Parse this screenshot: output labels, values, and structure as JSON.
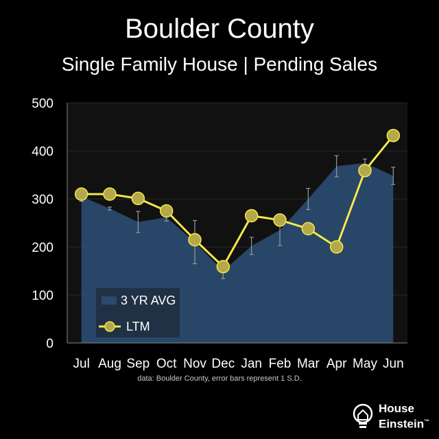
{
  "header": {
    "title": "Boulder County",
    "subtitle": "Single Family House | Pending Sales"
  },
  "footer": {
    "note": "data: Boulder County,  error bars represent 1 S.D."
  },
  "logo": {
    "line1": "House",
    "line2": "Einstein",
    "trademark": "™"
  },
  "colors": {
    "background": "#000000",
    "plot_area": "#111111",
    "area_fill": "#2a4a6e",
    "line": "#f5e84a",
    "marker_fill": "#b5a84a",
    "error_bar": "#9a9a9a",
    "grid": "#2a2a2a"
  },
  "chart_data": {
    "type": "area",
    "title": "Boulder County",
    "subtitle": "Single Family House | Pending Sales",
    "xlabel": "",
    "ylabel": "",
    "ylim": [
      0,
      500
    ],
    "yticks": [
      0,
      100,
      200,
      300,
      400,
      500
    ],
    "grid": false,
    "legend_position": "bottom-left",
    "categories": [
      "Jul",
      "Aug",
      "Sep",
      "Oct",
      "Nov",
      "Dec",
      "Jan",
      "Feb",
      "Mar",
      "Apr",
      "May",
      "Jun"
    ],
    "series": [
      {
        "name": "3 YR AVG",
        "kind": "area",
        "values": [
          305,
          280,
          252,
          262,
          210,
          150,
          202,
          235,
          300,
          368,
          375,
          348
        ],
        "error": [
          10,
          3,
          22,
          8,
          45,
          16,
          18,
          32,
          22,
          22,
          8,
          18
        ]
      },
      {
        "name": "LTM",
        "kind": "line",
        "values": [
          310,
          310,
          301,
          275,
          215,
          159,
          265,
          256,
          238,
          200,
          359,
          432
        ]
      }
    ],
    "annotation": "data: Boulder County,  error bars represent 1 S.D."
  }
}
